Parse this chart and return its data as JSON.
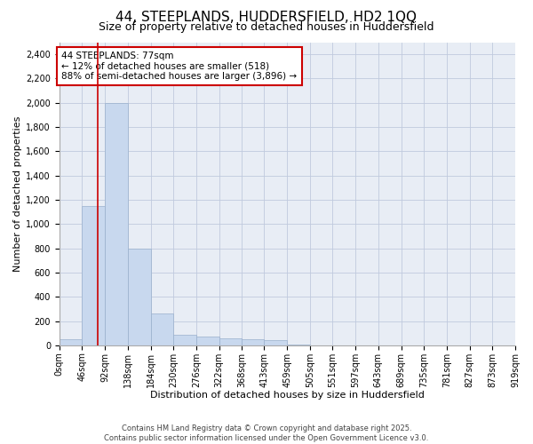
{
  "title": "44, STEEPLANDS, HUDDERSFIELD, HD2 1QQ",
  "subtitle": "Size of property relative to detached houses in Huddersfield",
  "xlabel": "Distribution of detached houses by size in Huddersfield",
  "ylabel": "Number of detached properties",
  "footer_line1": "Contains HM Land Registry data © Crown copyright and database right 2025.",
  "footer_line2": "Contains public sector information licensed under the Open Government Licence v3.0.",
  "annotation_line1": "44 STEEPLANDS: 77sqm",
  "annotation_line2": "← 12% of detached houses are smaller (518)",
  "annotation_line3": "88% of semi-detached houses are larger (3,896) →",
  "bar_color": "#c8d8ee",
  "bar_edge_color": "#9ab0cc",
  "vline_color": "#cc0000",
  "vline_x": 77,
  "bin_edges": [
    0,
    46,
    92,
    138,
    184,
    230,
    276,
    322,
    368,
    413,
    459,
    505,
    551,
    597,
    643,
    689,
    735,
    781,
    827,
    873,
    919
  ],
  "bar_heights": [
    50,
    1150,
    2000,
    800,
    260,
    90,
    75,
    60,
    50,
    40,
    5,
    0,
    0,
    0,
    0,
    0,
    0,
    0,
    0,
    0
  ],
  "ylim": [
    0,
    2500
  ],
  "yticks": [
    0,
    200,
    400,
    600,
    800,
    1000,
    1200,
    1400,
    1600,
    1800,
    2000,
    2200,
    2400
  ],
  "title_fontsize": 11,
  "subtitle_fontsize": 9,
  "tick_label_fontsize": 7,
  "axis_label_fontsize": 8,
  "annotation_fontsize": 7.5,
  "footer_fontsize": 6,
  "background_color": "#ffffff",
  "plot_bg_color": "#e8edf5",
  "grid_color": "#c0cade",
  "annotation_box_color": "#ffffff",
  "annotation_box_edge": "#cc0000"
}
